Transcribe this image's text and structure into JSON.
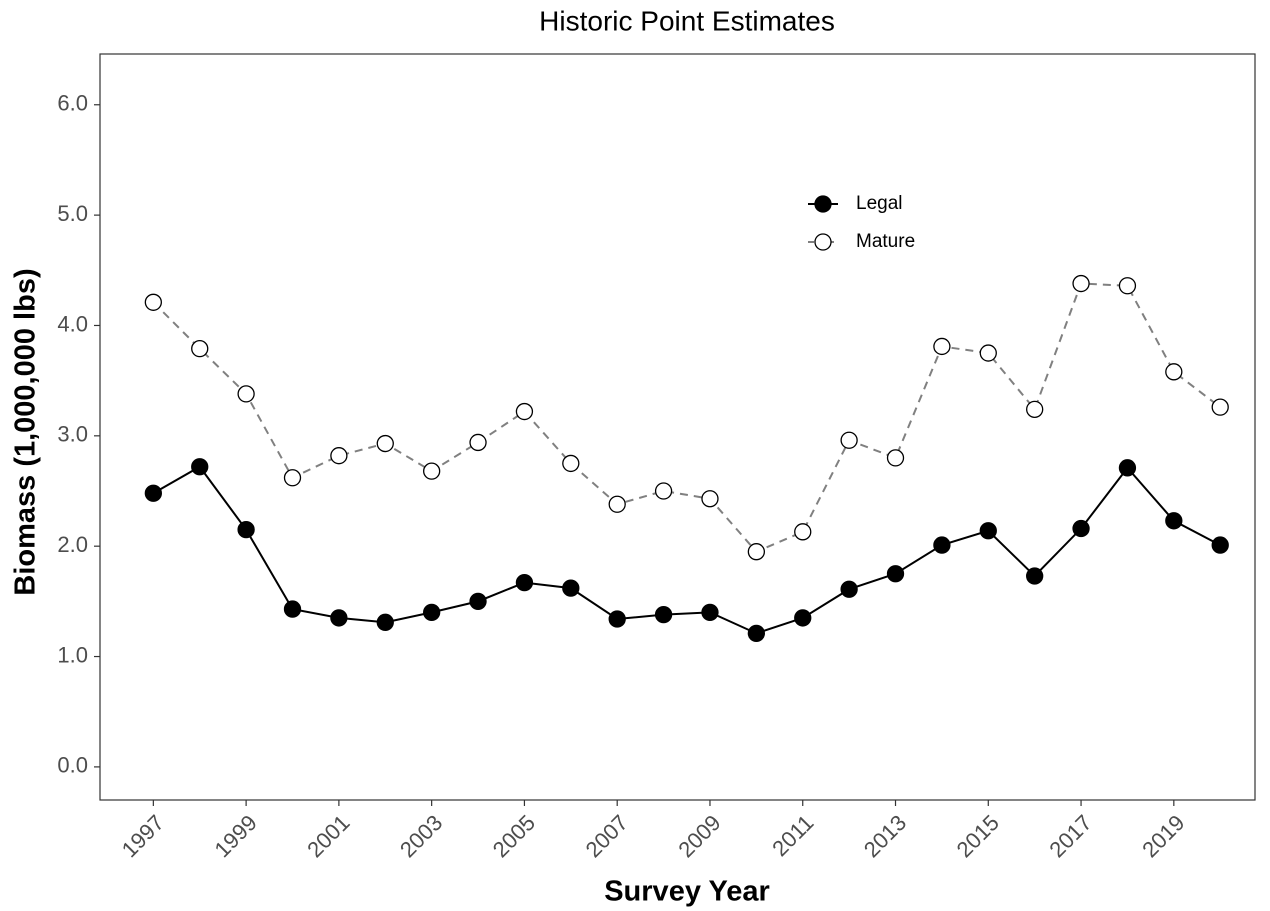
{
  "chart_data": {
    "type": "line",
    "title": "Historic Point Estimates",
    "x_label": "Survey Year",
    "y_label": "Biomass (1,000,000 lbs)",
    "x": [
      1997,
      1998,
      1999,
      2000,
      2001,
      2002,
      2003,
      2004,
      2005,
      2006,
      2007,
      2008,
      2009,
      2010,
      2011,
      2012,
      2013,
      2014,
      2015,
      2016,
      2017,
      2018,
      2019,
      2020
    ],
    "series": [
      {
        "name": "Legal",
        "color": "#000000",
        "marker_fill": "#000000",
        "line_style": "solid",
        "values": [
          2.48,
          2.72,
          2.15,
          1.43,
          1.35,
          1.31,
          1.4,
          1.5,
          1.67,
          1.62,
          1.34,
          1.38,
          1.4,
          1.21,
          1.35,
          1.61,
          1.75,
          2.01,
          2.14,
          1.73,
          2.16,
          2.71,
          2.23,
          2.01
        ]
      },
      {
        "name": "Mature",
        "color": "#808080",
        "marker_fill": "#ffffff",
        "line_style": "dashed",
        "values": [
          4.21,
          3.79,
          3.38,
          2.62,
          2.82,
          2.93,
          2.68,
          2.94,
          3.22,
          2.75,
          2.38,
          2.5,
          2.43,
          1.95,
          2.13,
          2.96,
          2.8,
          3.81,
          3.75,
          3.24,
          4.38,
          4.36,
          3.58,
          3.26
        ]
      }
    ],
    "xlim": [
      1995.85,
      2020.75
    ],
    "ylim": [
      -0.3,
      6.46
    ],
    "xticks": [
      1997,
      1999,
      2001,
      2003,
      2005,
      2007,
      2009,
      2011,
      2013,
      2015,
      2017,
      2019
    ],
    "yticks": [
      {
        "value": 0,
        "label": "0.0"
      },
      {
        "value": 1,
        "label": "1.0"
      },
      {
        "value": 2,
        "label": "2.0"
      },
      {
        "value": 3,
        "label": "3.0"
      },
      {
        "value": 4,
        "label": "4.0"
      },
      {
        "value": 5,
        "label": "5.0"
      },
      {
        "value": 6,
        "label": "6.0"
      }
    ],
    "grid": false
  }
}
